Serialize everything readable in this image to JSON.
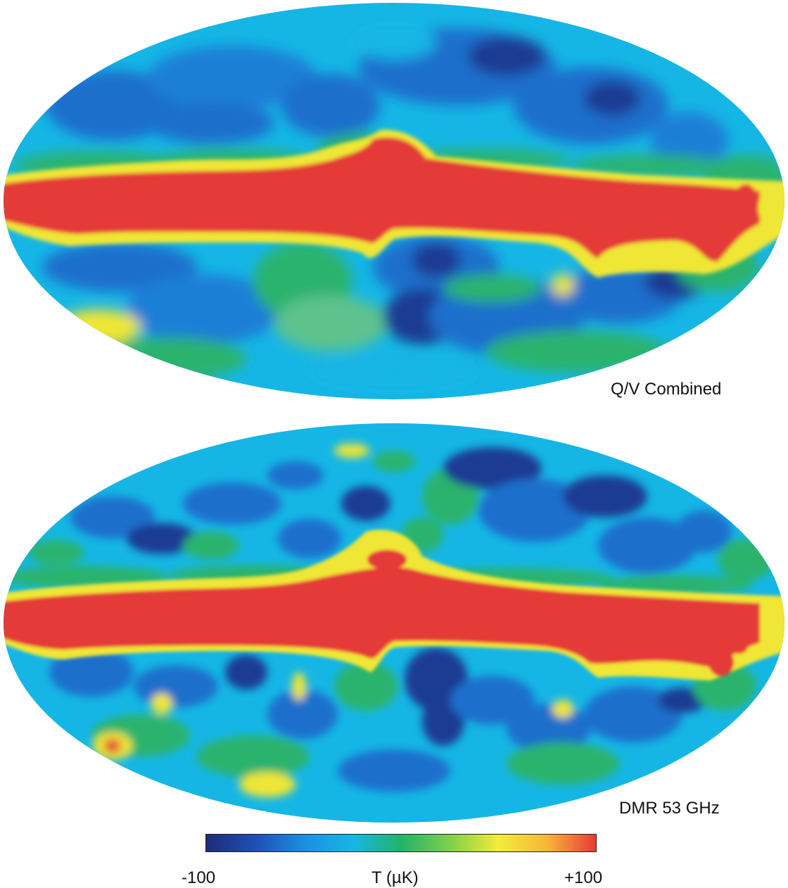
{
  "maps": {
    "top_label": "Q/V Combined",
    "bottom_label": "DMR 53 GHz"
  },
  "colorbar": {
    "min_label": "-100",
    "unit_label": "T (µK)",
    "max_label": "+100",
    "min_value": -100,
    "max_value": 100,
    "colors": [
      "#1e2b78",
      "#1f4fb3",
      "#1c8ee0",
      "#17b6e6",
      "#22b36a",
      "#7ed04a",
      "#f2ec3a",
      "#f7b53a",
      "#e83a35"
    ]
  },
  "palette": {
    "red_band": "#e43b37",
    "yellow": "#efe635",
    "green": "#2bb36d",
    "cyan": "#15b6e5",
    "blue": "#1c6fcc",
    "dark_blue": "#1d3a93"
  }
}
